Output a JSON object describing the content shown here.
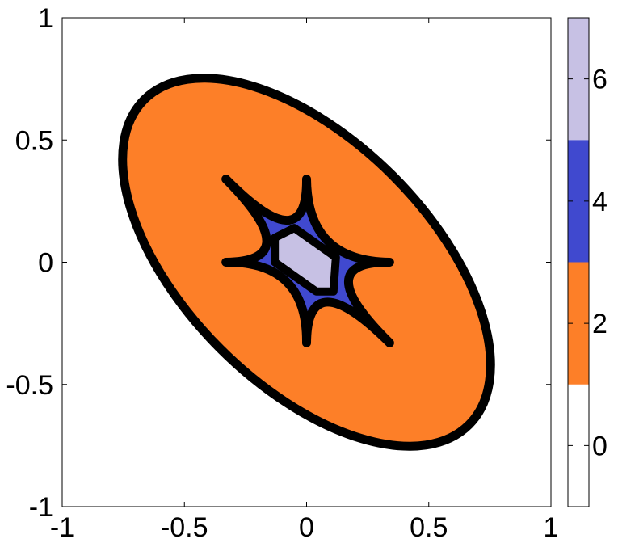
{
  "chart_data": {
    "type": "area",
    "title": "",
    "xlabel": "",
    "ylabel": "",
    "xlim": [
      -1,
      1
    ],
    "ylim": [
      -1,
      1
    ],
    "xticks": [
      -1,
      -0.5,
      0,
      0.5,
      1
    ],
    "xtick_labels": [
      "-1",
      "-0.5",
      "0",
      "0.5",
      "1"
    ],
    "yticks": [
      -1,
      -0.5,
      0,
      0.5,
      1
    ],
    "ytick_labels": [
      "-1",
      "-0.5",
      "0",
      "0.5",
      "1"
    ],
    "grid": false,
    "regions": [
      {
        "value": 2,
        "color": "#fd7f28",
        "shape": "ellipse",
        "center": [
          0,
          0
        ],
        "semi_major": 0.94,
        "semi_minor": 0.5,
        "angle_deg": -45
      },
      {
        "value": 4,
        "color": "#4049cf",
        "shape": "hexagram",
        "tips": [
          [
            -0.33,
            0.34
          ],
          [
            0,
            0.34
          ],
          [
            0.34,
            0
          ],
          [
            0.34,
            -0.33
          ],
          [
            0,
            -0.33
          ],
          [
            -0.33,
            0
          ]
        ]
      },
      {
        "value": 6,
        "color": "#c7c1e4",
        "shape": "polygon",
        "vertices": [
          [
            -0.13,
            0.1
          ],
          [
            -0.05,
            0.14
          ],
          [
            0.12,
            0.02
          ],
          [
            0.11,
            -0.12
          ],
          [
            0.04,
            -0.12
          ],
          [
            -0.13,
            0
          ]
        ]
      }
    ],
    "colorbar": {
      "range": [
        -1,
        7
      ],
      "ticks": [
        0,
        2,
        4,
        6
      ],
      "tick_labels": [
        "0",
        "2",
        "4",
        "6"
      ],
      "bands": [
        {
          "from": -1,
          "to": 1,
          "color": "#ffffff"
        },
        {
          "from": 1,
          "to": 3,
          "color": "#fd7f28"
        },
        {
          "from": 3,
          "to": 5,
          "color": "#4049cf"
        },
        {
          "from": 5,
          "to": 7,
          "color": "#c7c1e4"
        }
      ]
    },
    "contour_color": "#000000"
  }
}
